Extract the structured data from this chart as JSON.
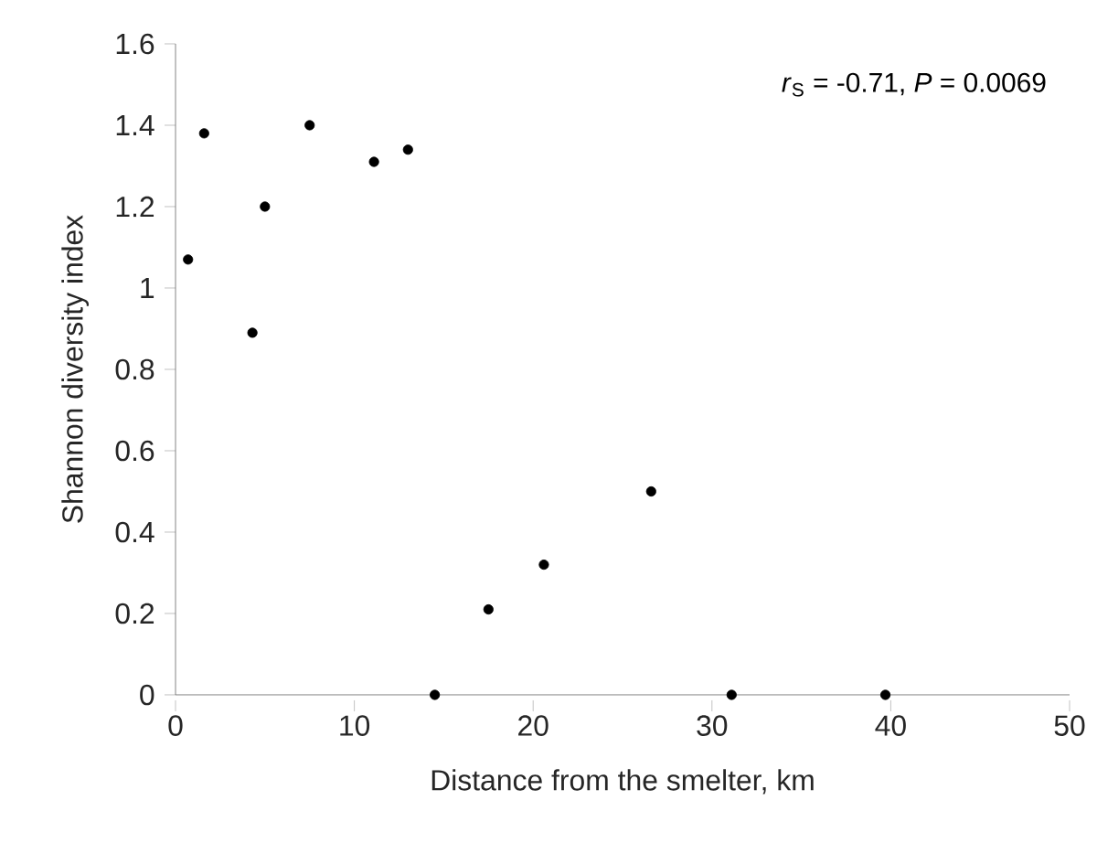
{
  "chart_data": {
    "type": "scatter",
    "xlabel": "Distance from the smelter, km",
    "ylabel": "Shannon diversity index",
    "annotations": [
      "*r*$_{S}$ = -0.71, *P* = 0.0069"
    ],
    "x": [
      0.7,
      1.6,
      4.3,
      5.0,
      7.5,
      11.1,
      13.0,
      14.5,
      17.5,
      20.6,
      26.6,
      31.1,
      39.7
    ],
    "series": [
      {
        "color": "#000000",
        "values": [
          1.07,
          1.38,
          0.89,
          1.2,
          1.4,
          1.31,
          1.34,
          0,
          0.21,
          0.32,
          0.5,
          0,
          0
        ]
      }
    ],
    "xlim": [
      0,
      50
    ],
    "xticks": [
      0,
      10,
      20,
      30,
      40,
      50
    ],
    "ylim": [
      0,
      1.6
    ],
    "yticks": [
      0,
      {
        "value": 0.2,
        "label": "0.2"
      },
      {
        "value": 0.4,
        "label": "0.4"
      },
      {
        "value": 0.6,
        "label": "0.6"
      },
      {
        "value": 0.8,
        "label": "0.8"
      },
      1,
      {
        "value": 1.2,
        "label": "1.2"
      },
      {
        "value": 1.4,
        "label": "1.4"
      },
      {
        "value": 1.6,
        "label": "1.6"
      }
    ],
    "marker": "circle",
    "grid": false
  }
}
